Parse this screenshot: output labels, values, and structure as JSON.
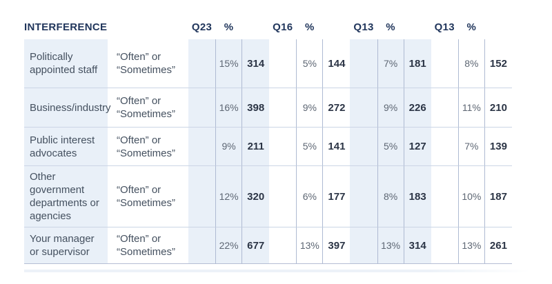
{
  "table": {
    "title": "INTERFERENCE",
    "groups": [
      {
        "q": "Q23",
        "pct": "%"
      },
      {
        "q": "Q16",
        "pct": "%"
      },
      {
        "q": "Q13",
        "pct": "%"
      },
      {
        "q": "Q13",
        "pct": "%"
      }
    ],
    "rows": [
      {
        "label": "Politically appointed staff",
        "response": "“Often” or “Sometimes”",
        "cells": [
          {
            "pct": "15%",
            "n": "314"
          },
          {
            "pct": "5%",
            "n": "144"
          },
          {
            "pct": "7%",
            "n": "181"
          },
          {
            "pct": "8%",
            "n": "152"
          }
        ]
      },
      {
        "label": "Business/industry",
        "response": "“Often” or “Sometimes”",
        "cells": [
          {
            "pct": "16%",
            "n": "398"
          },
          {
            "pct": "9%",
            "n": "272"
          },
          {
            "pct": "9%",
            "n": "226"
          },
          {
            "pct": "11%",
            "n": "210"
          }
        ]
      },
      {
        "label": "Public interest advocates",
        "response": "“Often” or “Sometimes”",
        "cells": [
          {
            "pct": "9%",
            "n": "211"
          },
          {
            "pct": "5%",
            "n": "141"
          },
          {
            "pct": "5%",
            "n": "127"
          },
          {
            "pct": "7%",
            "n": "139"
          }
        ]
      },
      {
        "label": "Other government departments or agencies",
        "response": "“Often” or “Sometimes”",
        "cells": [
          {
            "pct": "12%",
            "n": "320"
          },
          {
            "pct": "6%",
            "n": "177"
          },
          {
            "pct": "8%",
            "n": "183"
          },
          {
            "pct": "10%",
            "n": "187"
          }
        ]
      },
      {
        "label": "Your manager or supervisor",
        "response": "“Often” or “Sometimes”",
        "cells": [
          {
            "pct": "22%",
            "n": "677"
          },
          {
            "pct": "13%",
            "n": "397"
          },
          {
            "pct": "13%",
            "n": "314"
          },
          {
            "pct": "13%",
            "n": "261"
          }
        ]
      }
    ]
  },
  "chart_data": {
    "type": "table",
    "title": "INTERFERENCE",
    "column_groups": [
      "Q23",
      "Q16",
      "Q13",
      "Q13"
    ],
    "measures_per_group": [
      "percent",
      "count"
    ],
    "response_scale": "“Often” or “Sometimes”",
    "rows": [
      {
        "label": "Politically appointed staff",
        "values": [
          [
            15,
            314
          ],
          [
            5,
            144
          ],
          [
            7,
            181
          ],
          [
            8,
            152
          ]
        ]
      },
      {
        "label": "Business/industry",
        "values": [
          [
            16,
            398
          ],
          [
            9,
            272
          ],
          [
            9,
            226
          ],
          [
            11,
            210
          ]
        ]
      },
      {
        "label": "Public interest advocates",
        "values": [
          [
            9,
            211
          ],
          [
            5,
            141
          ],
          [
            5,
            127
          ],
          [
            7,
            139
          ]
        ]
      },
      {
        "label": "Other government departments or agencies",
        "values": [
          [
            12,
            320
          ],
          [
            6,
            177
          ],
          [
            8,
            183
          ],
          [
            10,
            187
          ]
        ]
      },
      {
        "label": "Your manager or supervisor",
        "values": [
          [
            22,
            677
          ],
          [
            13,
            397
          ],
          [
            13,
            314
          ],
          [
            13,
            261
          ]
        ]
      }
    ],
    "layout": {
      "shaded_groups": [
        0,
        2
      ],
      "shade_color": "#e9f0f8"
    }
  },
  "colors": {
    "header_text": "#21365c",
    "label_text": "#44505f",
    "percent_text": "#5d6673",
    "count_text": "#2b3445",
    "shade": "#e9f0f8",
    "grid_line": "#aebad2",
    "row_separator": "#cbd5e5",
    "bottom_border": "#b5bdd4"
  }
}
